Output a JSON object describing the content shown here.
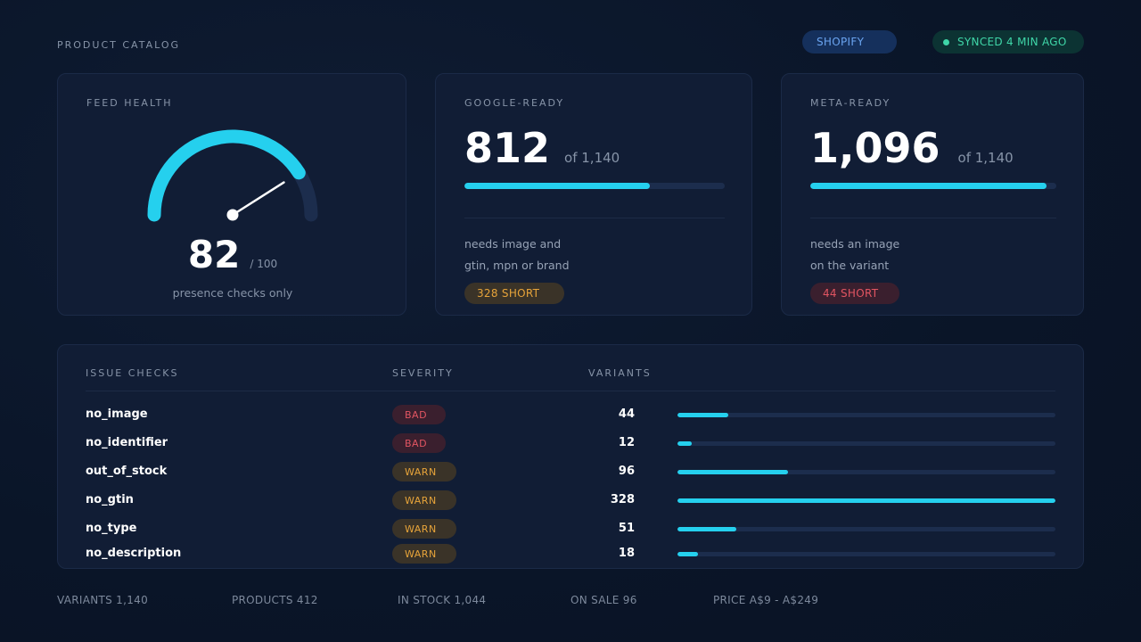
{
  "header": {
    "title": "PRODUCT CATALOG",
    "platform": "SHOPIFY",
    "sync_status": "SYNCED 4 MIN AGO"
  },
  "feed_health": {
    "label": "FEED HEALTH",
    "score": "82",
    "max": "/ 100",
    "score_value": 82,
    "score_max": 100,
    "note": "presence checks only"
  },
  "google": {
    "label": "GOOGLE-READY",
    "value": "812",
    "of": "of 1,140",
    "fraction": 0.712,
    "note_line1": "needs image and",
    "note_line2": "gtin, mpn or brand",
    "badge": "328 SHORT"
  },
  "meta": {
    "label": "META-READY",
    "value": "1,096",
    "of": "of 1,140",
    "fraction": 0.961,
    "note_line1": "needs an image",
    "note_line2": "on the variant",
    "badge": "44 SHORT"
  },
  "issues": {
    "col_name": "ISSUE CHECKS",
    "col_severity": "SEVERITY",
    "col_variants": "VARIANTS",
    "rows": [
      {
        "name": "no_image",
        "severity": "BAD",
        "count": "44",
        "value": 44
      },
      {
        "name": "no_identifier",
        "severity": "BAD",
        "count": "12",
        "value": 12
      },
      {
        "name": "out_of_stock",
        "severity": "WARN",
        "count": "96",
        "value": 96
      },
      {
        "name": "no_gtin",
        "severity": "WARN",
        "count": "328",
        "value": 328
      },
      {
        "name": "no_type",
        "severity": "WARN",
        "count": "51",
        "value": 51
      },
      {
        "name": "no_description",
        "severity": "WARN",
        "count": "18",
        "value": 18
      }
    ]
  },
  "footer": {
    "variants": "VARIANTS 1,140",
    "products": "PRODUCTS 412",
    "in_stock": "IN STOCK 1,044",
    "on_sale": "ON SALE 96",
    "price": "PRICE A$9 - A$249"
  },
  "colors": {
    "accent": "#25d0ee",
    "bad": "#e25562",
    "warn": "#e7a43a",
    "ok": "#3fd6a8"
  }
}
